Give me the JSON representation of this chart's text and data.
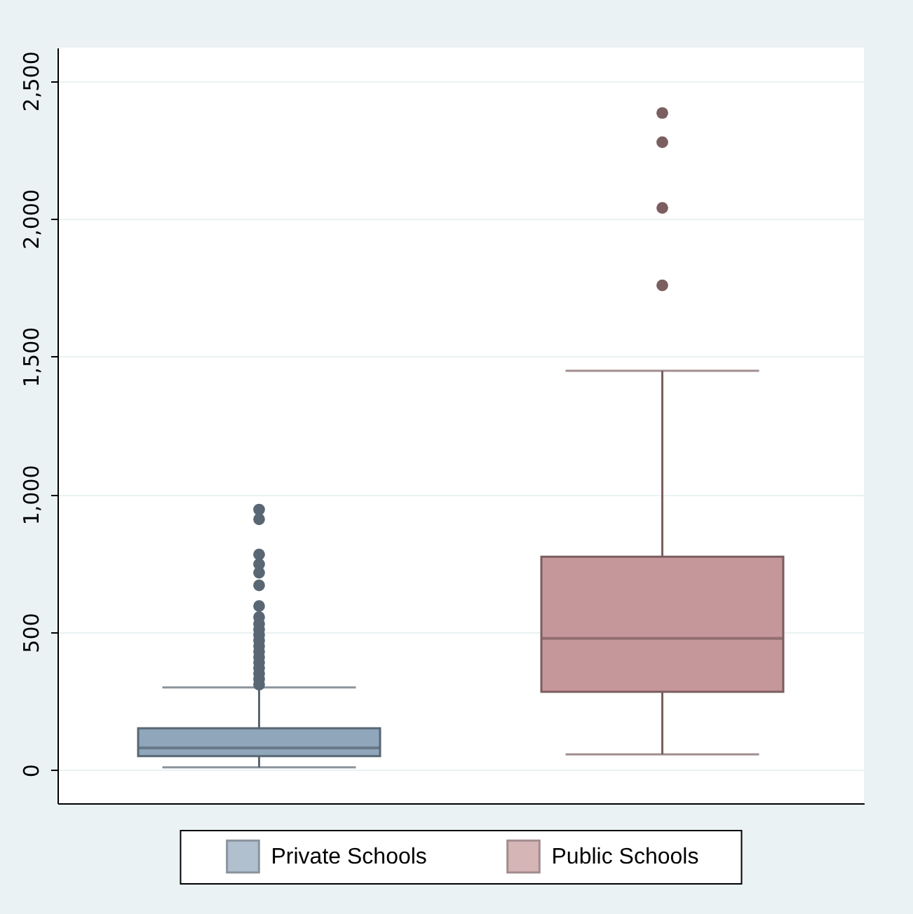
{
  "chart_data": {
    "type": "box",
    "categories": [
      null,
      null
    ],
    "series": [
      {
        "name": "Private Schools",
        "color": "#8fa6bb",
        "boxes": [
          {
            "low": 10,
            "q1": 51,
            "median": 81,
            "q3": 152,
            "high": 300,
            "outliers": [
              310,
              330,
              350,
              370,
              390,
              410,
              430,
              450,
              470,
              490,
              510,
              530,
              555,
              595,
              670,
              716,
              747,
              782,
              910,
              945
            ]
          },
          null
        ]
      },
      {
        "name": "Public Schools",
        "color": "#c6979a",
        "boxes": [
          null,
          {
            "low": 57,
            "q1": 284,
            "median": 478,
            "q3": 774,
            "high": 1448,
            "outliers": [
              1758,
              2039,
              2277,
              2383
            ]
          }
        ]
      }
    ],
    "ylim": [
      -120,
      2620
    ],
    "yticks": [
      0,
      500,
      {
        "value": 1000,
        "label": "1,000"
      },
      {
        "value": 1500,
        "label": "1,500"
      },
      {
        "value": 2000,
        "label": "2,000"
      },
      {
        "value": 2500,
        "label": "2,500"
      }
    ],
    "grid": "y",
    "legend": "bottom",
    "tick_labels": "y",
    "marker": "circle"
  }
}
